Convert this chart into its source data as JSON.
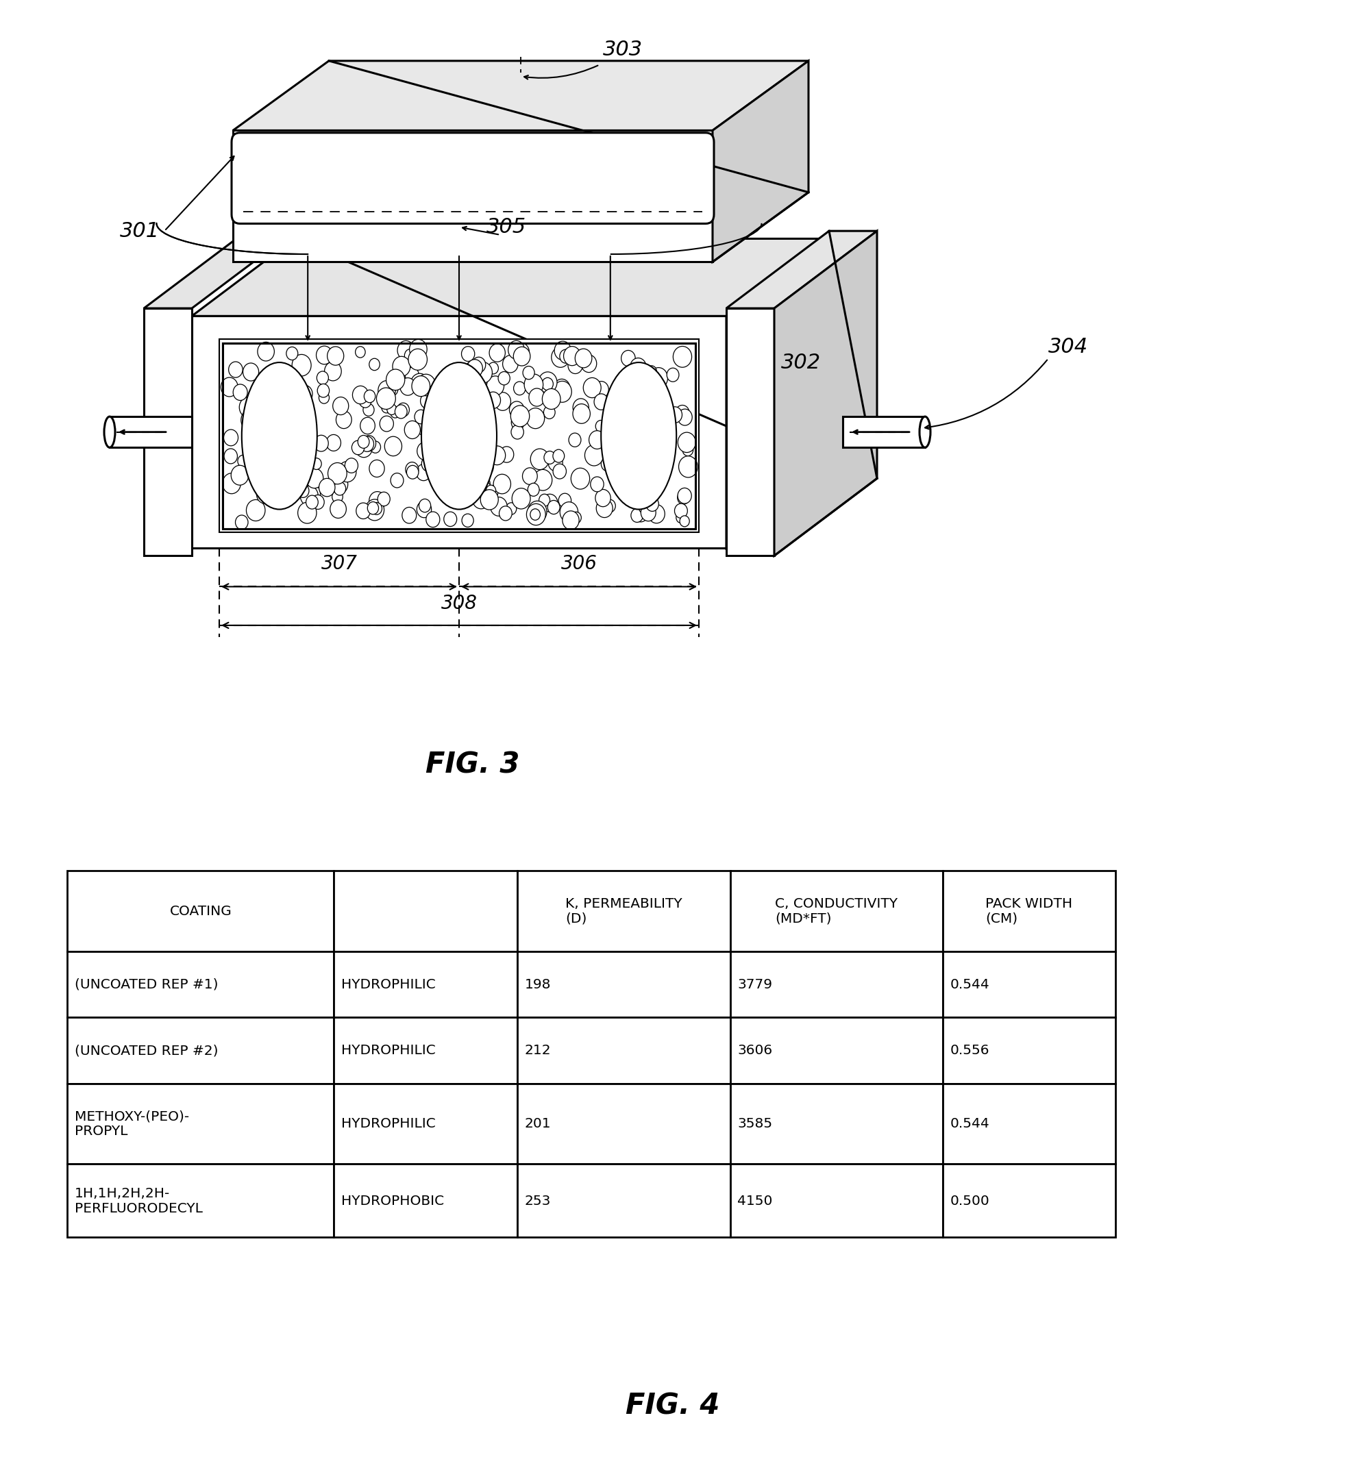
{
  "fig3_label": "FIG. 3",
  "fig4_label": "FIG. 4",
  "table_headers": [
    "COATING",
    "",
    "K, PERMEABILITY\n(D)",
    "C, CONDUCTIVITY\n(MD*FT)",
    "PACK WIDTH\n(CM)"
  ],
  "table_rows": [
    [
      "(UNCOATED REP #1)",
      "HYDROPHILIC",
      "198",
      "3779",
      "0.544"
    ],
    [
      "(UNCOATED REP #2)",
      "HYDROPHILIC",
      "212",
      "3606",
      "0.556"
    ],
    [
      "METHOXY-(PEO)-\nPROPYL",
      "HYDROPHILIC",
      "201",
      "3585",
      "0.544"
    ],
    [
      "1H,1H,2H,2H-\nPERFLUORODECYL",
      "HYDROPHOBIC",
      "253",
      "4150",
      "0.500"
    ]
  ],
  "background_color": "#ffffff",
  "line_color": "#000000"
}
